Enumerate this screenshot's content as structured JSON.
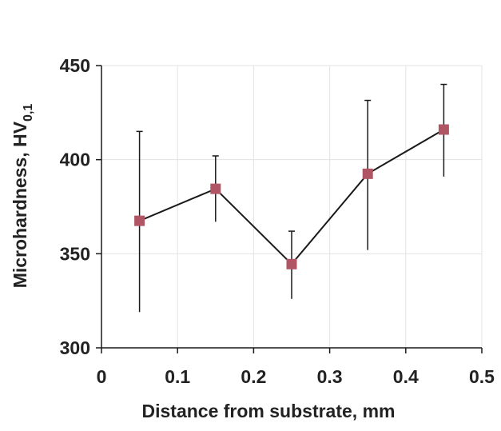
{
  "chart_data": {
    "type": "line",
    "title": "",
    "xlabel": "Distance from substrate, mm",
    "ylabel": "Microhardness, HV",
    "ylabel_subscript": "0,1",
    "xlim": [
      0,
      0.5
    ],
    "ylim": [
      300,
      450
    ],
    "xticks": [
      0,
      0.1,
      0.2,
      0.3,
      0.4,
      0.5
    ],
    "xtick_labels": [
      "0",
      "0.1",
      "0.2",
      "0.3",
      "0.4",
      "0.5"
    ],
    "yticks": [
      300,
      350,
      400,
      450
    ],
    "ytick_labels": [
      "300",
      "350",
      "400",
      "450"
    ],
    "grid": true,
    "legend": "none",
    "series": [
      {
        "x": [
          0.05,
          0.15,
          0.25,
          0.35,
          0.45
        ],
        "y": [
          367.5,
          384.5,
          344.5,
          392.5,
          416
        ],
        "err_low": [
          319,
          367,
          326,
          352,
          391
        ],
        "err_high": [
          415,
          402,
          362,
          431.5,
          440
        ],
        "marker": "square",
        "marker_color": "#b05563",
        "line_color": "#1a1a1a"
      }
    ]
  }
}
